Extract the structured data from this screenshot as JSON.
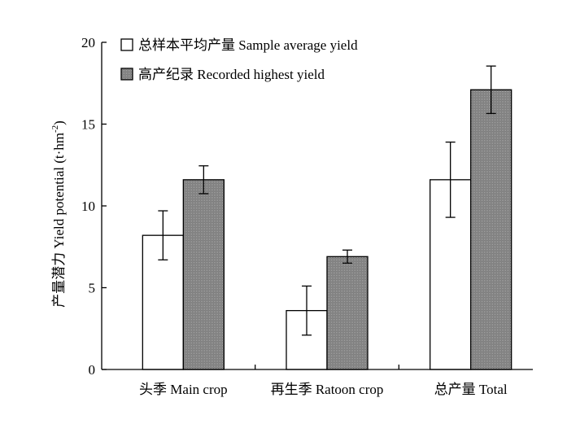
{
  "chart_data": {
    "type": "bar",
    "categories": [
      "头季 Main crop",
      "再生季 Ratoon crop",
      "总产量 Total"
    ],
    "series": [
      {
        "name": "总样本平均产量 Sample average yield",
        "values": [
          8.2,
          3.6,
          11.6
        ],
        "error": [
          1.5,
          1.5,
          2.3
        ],
        "fill": "#ffffff"
      },
      {
        "name": "高产纪录 Recorded highest yield",
        "values": [
          11.6,
          6.9,
          17.1
        ],
        "error": [
          0.85,
          0.4,
          1.45
        ],
        "fill": "#8c8c8c"
      }
    ],
    "ylabel": {
      "main": "产量潜力 Yield potential (t·hm",
      "sup": "-2",
      "close": ")"
    },
    "ylim": [
      0,
      20
    ],
    "yticks": [
      0,
      5,
      10,
      15,
      20
    ],
    "grid": false,
    "legend_position": "top-left",
    "colors": {
      "axis": "#000000",
      "bar_outline": "#000000",
      "pattern_dark": "#6e6e6e",
      "pattern_light": "#c8c8c8"
    }
  }
}
